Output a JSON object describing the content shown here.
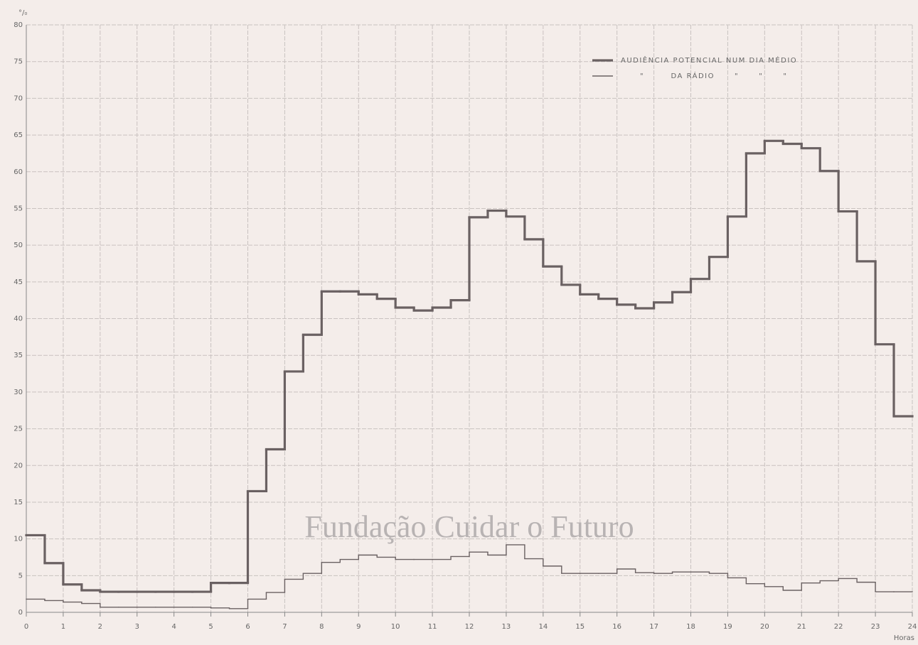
{
  "chart_data": {
    "type": "step",
    "y_label": "°/₀",
    "x_label": "Horas",
    "annotation": "Fundação Cuidar o Futuro",
    "x": [
      0,
      0.5,
      1,
      1.5,
      2,
      2.5,
      3,
      3.5,
      4,
      4.5,
      5,
      5.5,
      6,
      6.5,
      7,
      7.5,
      8,
      8.5,
      9,
      9.5,
      10,
      10.5,
      11,
      11.5,
      12,
      12.5,
      13,
      13.5,
      14,
      14.5,
      15,
      15.5,
      16,
      16.5,
      17,
      17.5,
      18,
      18.5,
      19,
      19.5,
      20,
      20.5,
      21,
      21.5,
      22,
      22.5,
      23,
      23.5
    ],
    "series": [
      {
        "name": "AUDIÊNCIA POTENCIAL NUM DIA MÉDIO",
        "color": "#6a6162",
        "width": 3.2,
        "values": [
          10.5,
          6.7,
          3.8,
          3.0,
          2.8,
          2.8,
          2.8,
          2.8,
          2.8,
          2.8,
          4.0,
          4.0,
          16.5,
          22.2,
          32.8,
          37.8,
          43.7,
          43.7,
          43.3,
          42.7,
          41.5,
          41.1,
          41.5,
          42.5,
          53.8,
          54.7,
          53.9,
          50.8,
          47.1,
          44.6,
          43.3,
          42.7,
          41.9,
          41.4,
          42.2,
          43.6,
          45.4,
          48.4,
          53.9,
          62.5,
          64.2,
          63.8,
          63.2,
          60.1,
          54.6,
          47.8,
          36.5,
          26.7
        ]
      },
      {
        "name": "\"        DA RÁDIO      \"      \"      \"",
        "color": "#6a6162",
        "width": 1.4,
        "values": [
          1.8,
          1.6,
          1.4,
          1.2,
          0.7,
          0.7,
          0.7,
          0.7,
          0.7,
          0.7,
          0.6,
          0.5,
          1.8,
          2.7,
          4.5,
          5.3,
          6.8,
          7.2,
          7.8,
          7.5,
          7.2,
          7.2,
          7.2,
          7.6,
          8.2,
          7.8,
          9.2,
          7.3,
          6.3,
          5.3,
          5.3,
          5.3,
          5.9,
          5.4,
          5.3,
          5.5,
          5.5,
          5.3,
          4.7,
          3.9,
          3.5,
          3.0,
          4.0,
          4.3,
          4.6,
          4.1,
          2.8,
          2.8
        ]
      }
    ],
    "xlim": [
      0,
      24
    ],
    "xticks": [
      0,
      1,
      2,
      3,
      4,
      5,
      6,
      7,
      8,
      9,
      10,
      11,
      12,
      13,
      14,
      15,
      16,
      17,
      18,
      19,
      20,
      21,
      22,
      23,
      24
    ],
    "ylim": [
      0,
      80
    ],
    "yticks": [
      0,
      5,
      10,
      15,
      20,
      25,
      30,
      35,
      40,
      45,
      50,
      55,
      60,
      65,
      70,
      75,
      80
    ],
    "grid": true
  }
}
